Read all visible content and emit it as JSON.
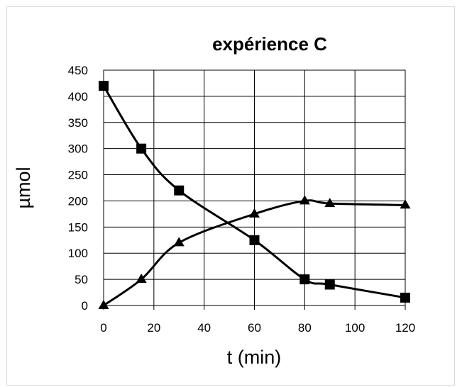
{
  "chart_data": {
    "type": "line",
    "title": "expérience C",
    "xlabel": "t (min)",
    "ylabel": "µmol",
    "xlim": [
      0,
      120
    ],
    "ylim": [
      0,
      450
    ],
    "x_ticks": [
      "0",
      "20",
      "40",
      "60",
      "80",
      "100",
      "120"
    ],
    "y_ticks": [
      "0",
      "50",
      "100",
      "150",
      "200",
      "250",
      "300",
      "350",
      "400",
      "450"
    ],
    "grid": true,
    "legend": "none",
    "series": [
      {
        "marker": "square",
        "color": "#000000",
        "x": [
          0,
          15,
          30,
          60,
          80,
          90,
          120
        ],
        "y": [
          420,
          300,
          220,
          125,
          50,
          40,
          15
        ]
      },
      {
        "marker": "triangle",
        "color": "#000000",
        "x": [
          0,
          15,
          30,
          60,
          80,
          90,
          120
        ],
        "y": [
          0,
          50,
          120,
          175,
          200,
          195,
          192
        ]
      }
    ]
  }
}
